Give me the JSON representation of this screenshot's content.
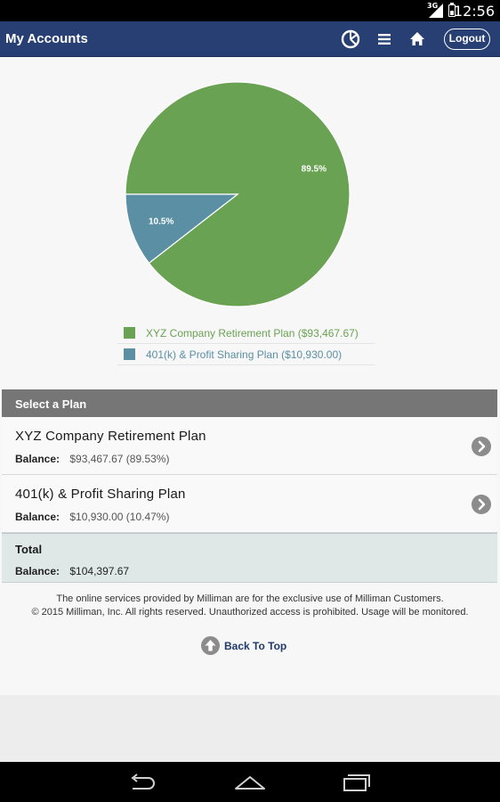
{
  "status_bar": {
    "time": "12:56",
    "network": "3G"
  },
  "app_bar": {
    "title": "My Accounts",
    "logout_label": "Logout",
    "icons": [
      "chart-icon",
      "menu-icon",
      "home-icon"
    ]
  },
  "chart_data": {
    "type": "pie",
    "slices": [
      {
        "label": "XYZ Company Retirement Plan ($93,467.67)",
        "value": 89.5,
        "display": "89.5%",
        "color": "#6aa253"
      },
      {
        "label": "401(k) & Profit Sharing Plan ($10,930.00)",
        "value": 10.5,
        "display": "10.5%",
        "color": "#5b90a4"
      }
    ]
  },
  "select_plan": {
    "header": "Select a Plan",
    "plans": [
      {
        "name": "XYZ Company Retirement Plan",
        "balance_label": "Balance:",
        "balance": "$93,467.67 (89.53%)"
      },
      {
        "name": "401(k) & Profit Sharing Plan",
        "balance_label": "Balance:",
        "balance": "$10,930.00 (10.47%)"
      }
    ],
    "total": {
      "title": "Total",
      "balance_label": "Balance:",
      "balance": "$104,397.67"
    }
  },
  "footer": {
    "line1": "The online services provided by Milliman are for the exclusive use of Milliman Customers.",
    "line2": "© 2015 Milliman, Inc. All rights reserved. Unauthorized access is prohibited. Usage will be monitored."
  },
  "back_to_top_label": "Back To Top",
  "colors": {
    "app_bar": "#273f73",
    "accent_green": "#6aa253",
    "accent_blue": "#5b90a4"
  }
}
